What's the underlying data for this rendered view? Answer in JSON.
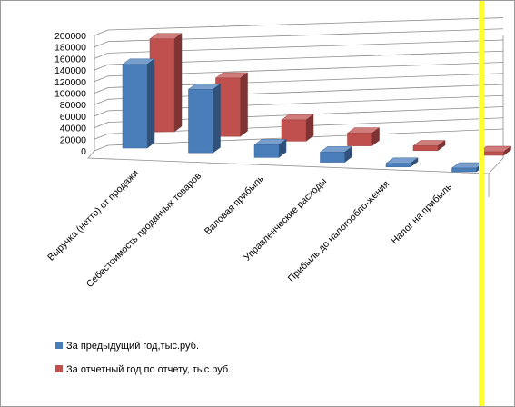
{
  "chart_data": {
    "type": "bar",
    "title": "",
    "xlabel": "",
    "ylabel": "",
    "ylim": [
      0,
      200000
    ],
    "yticks": [
      0,
      20000,
      40000,
      60000,
      80000,
      100000,
      120000,
      140000,
      160000,
      180000,
      200000
    ],
    "categories": [
      "Выручка (нетто) от продажи",
      "Себестоимость проданных товаров",
      "Валовая прибыль",
      "Управленческие расходы",
      "Прибыль до налогообло-жения",
      "Налог на прибыль"
    ],
    "series": [
      {
        "name": "За предыдущий год,тыс.руб.",
        "color": "#4a7ebb",
        "values": [
          165000,
          125000,
          25000,
          20000,
          4000,
          1000
        ]
      },
      {
        "name": "За отчетный год по отчету, тыс.руб.",
        "color": "#c0504d",
        "values": [
          175000,
          110000,
          40000,
          24000,
          9000,
          2000
        ]
      }
    ],
    "legend_position": "bottom-left",
    "grid": true,
    "style": "3d-clustered-column"
  },
  "decor": {
    "side_line_color": "#ffff33"
  }
}
